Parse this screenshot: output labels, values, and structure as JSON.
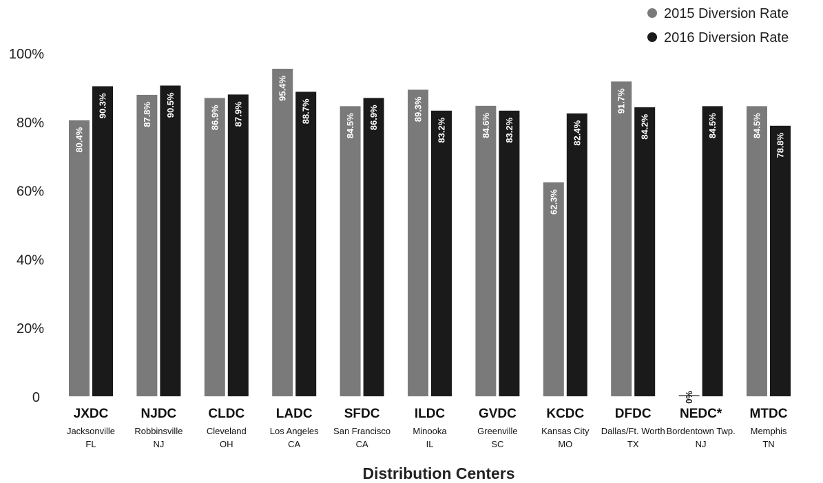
{
  "chart_data": {
    "type": "bar",
    "title": "",
    "xlabel": "Distribution Centers",
    "ylabel": "",
    "ylim": [
      0,
      100
    ],
    "yticks": [
      "0",
      "20%",
      "40%",
      "60%",
      "80%",
      "100%"
    ],
    "legend_position": "top-right",
    "categories": [
      {
        "code": "JXDC",
        "city": "Jacksonville",
        "state": "FL"
      },
      {
        "code": "NJDC",
        "city": "Robbinsville",
        "state": "NJ"
      },
      {
        "code": "CLDC",
        "city": "Cleveland",
        "state": "OH"
      },
      {
        "code": "LADC",
        "city": "Los Angeles",
        "state": "CA"
      },
      {
        "code": "SFDC",
        "city": "San Francisco",
        "state": "CA"
      },
      {
        "code": "ILDC",
        "city": "Minooka",
        "state": "IL"
      },
      {
        "code": "GVDC",
        "city": "Greenville",
        "state": "SC"
      },
      {
        "code": "KCDC",
        "city": "Kansas City",
        "state": "MO"
      },
      {
        "code": "DFDC",
        "city": "Dallas/Ft. Worth",
        "state": "TX"
      },
      {
        "code": "NEDC*",
        "city": "Bordentown Twp.",
        "state": "NJ"
      },
      {
        "code": "MTDC",
        "city": "Memphis",
        "state": "TN"
      }
    ],
    "series": [
      {
        "name": "2015 Diversion Rate",
        "color": "#7a7a7a",
        "values": [
          80.4,
          87.8,
          86.9,
          95.4,
          84.5,
          89.3,
          84.6,
          62.3,
          91.7,
          0,
          84.5
        ],
        "labels": [
          "80.4%",
          "87.8%",
          "86.9%",
          "95.4%",
          "84.5%",
          "89.3%",
          "84.6%",
          "62.3%",
          "91.7%",
          "0%",
          "84.5%"
        ]
      },
      {
        "name": "2016 Diversion Rate",
        "color": "#1a1a1a",
        "values": [
          90.3,
          90.5,
          87.9,
          88.7,
          86.9,
          83.2,
          83.2,
          82.4,
          84.2,
          84.5,
          78.8
        ],
        "labels": [
          "90.3%",
          "90.5%",
          "87.9%",
          "88.7%",
          "86.9%",
          "83.2%",
          "83.2%",
          "82.4%",
          "84.2%",
          "84.5%",
          "78.8%"
        ]
      }
    ]
  }
}
